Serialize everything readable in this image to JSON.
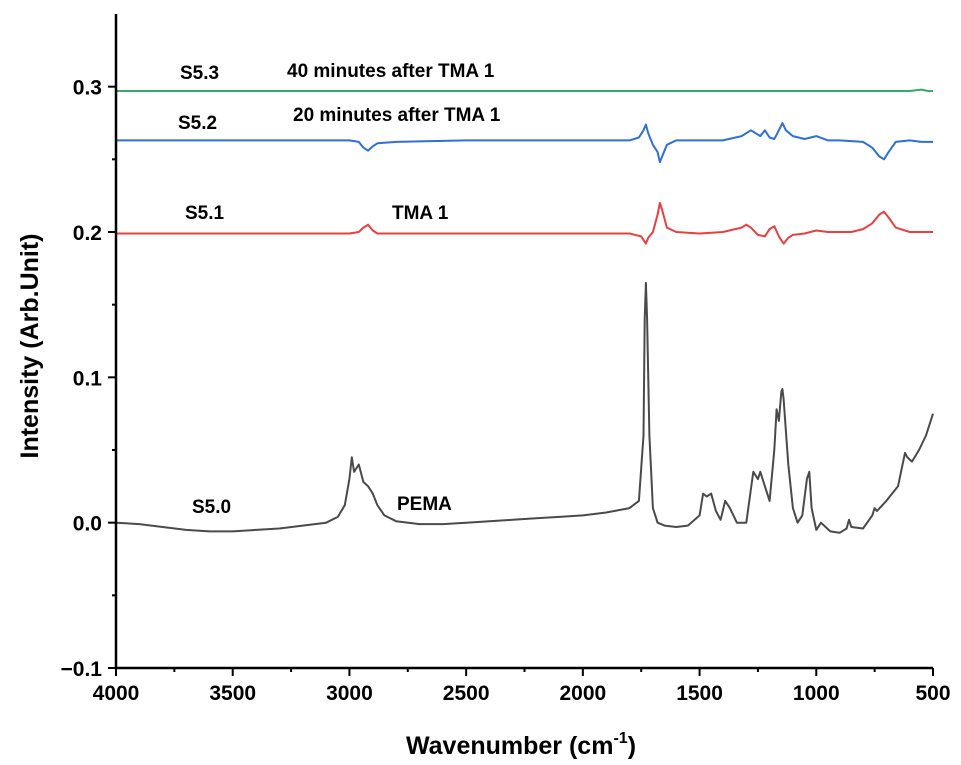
{
  "chart_data": {
    "type": "line",
    "xlabel": "Wavenumber (cm",
    "xlabel_sup": "-1",
    "xlabel_suffix": ")",
    "ylabel": "Intensity (Arb.Unit)",
    "xlim": [
      4000,
      500
    ],
    "ylim": [
      -0.1,
      0.35
    ],
    "x_reversed": true,
    "x_ticks": [
      4000,
      3500,
      3000,
      2500,
      2000,
      1500,
      1000,
      500
    ],
    "x_tick_labels": [
      "4000",
      "3500",
      "3000",
      "2500",
      "2000",
      "1500",
      "1000",
      "500"
    ],
    "y_ticks": [
      -0.1,
      0.0,
      0.1,
      0.2,
      0.3
    ],
    "y_tick_labels": [
      "−0.1",
      "0.0",
      "0.1",
      "0.2",
      "0.3"
    ],
    "grid": false,
    "series": [
      {
        "name": "S5.0",
        "label": "PEMA",
        "color": "#4a4a4a",
        "points": [
          [
            4000,
            0.0
          ],
          [
            3900,
            -0.001
          ],
          [
            3800,
            -0.003
          ],
          [
            3700,
            -0.005
          ],
          [
            3600,
            -0.006
          ],
          [
            3500,
            -0.006
          ],
          [
            3400,
            -0.005
          ],
          [
            3300,
            -0.004
          ],
          [
            3200,
            -0.002
          ],
          [
            3100,
            0.0
          ],
          [
            3050,
            0.004
          ],
          [
            3020,
            0.012
          ],
          [
            3000,
            0.03
          ],
          [
            2990,
            0.045
          ],
          [
            2980,
            0.035
          ],
          [
            2960,
            0.04
          ],
          [
            2940,
            0.028
          ],
          [
            2920,
            0.025
          ],
          [
            2900,
            0.02
          ],
          [
            2880,
            0.012
          ],
          [
            2850,
            0.005
          ],
          [
            2800,
            0.001
          ],
          [
            2700,
            -0.001
          ],
          [
            2600,
            -0.001
          ],
          [
            2500,
            0.0
          ],
          [
            2400,
            0.001
          ],
          [
            2300,
            0.002
          ],
          [
            2200,
            0.003
          ],
          [
            2100,
            0.004
          ],
          [
            2000,
            0.005
          ],
          [
            1900,
            0.007
          ],
          [
            1800,
            0.01
          ],
          [
            1760,
            0.015
          ],
          [
            1740,
            0.06
          ],
          [
            1735,
            0.14
          ],
          [
            1730,
            0.165
          ],
          [
            1725,
            0.14
          ],
          [
            1715,
            0.06
          ],
          [
            1700,
            0.01
          ],
          [
            1680,
            0.0
          ],
          [
            1650,
            -0.002
          ],
          [
            1600,
            -0.003
          ],
          [
            1550,
            -0.002
          ],
          [
            1500,
            0.005
          ],
          [
            1485,
            0.02
          ],
          [
            1470,
            0.018
          ],
          [
            1450,
            0.02
          ],
          [
            1430,
            0.008
          ],
          [
            1410,
            0.002
          ],
          [
            1390,
            0.015
          ],
          [
            1370,
            0.01
          ],
          [
            1340,
            0.0
          ],
          [
            1300,
            0.0
          ],
          [
            1270,
            0.035
          ],
          [
            1250,
            0.03
          ],
          [
            1240,
            0.035
          ],
          [
            1220,
            0.025
          ],
          [
            1200,
            0.015
          ],
          [
            1180,
            0.05
          ],
          [
            1170,
            0.078
          ],
          [
            1160,
            0.07
          ],
          [
            1150,
            0.09
          ],
          [
            1145,
            0.092
          ],
          [
            1140,
            0.085
          ],
          [
            1120,
            0.04
          ],
          [
            1100,
            0.01
          ],
          [
            1080,
            0.0
          ],
          [
            1060,
            0.005
          ],
          [
            1040,
            0.03
          ],
          [
            1030,
            0.035
          ],
          [
            1020,
            0.01
          ],
          [
            1000,
            -0.005
          ],
          [
            980,
            0.0
          ],
          [
            960,
            -0.003
          ],
          [
            940,
            -0.006
          ],
          [
            900,
            -0.007
          ],
          [
            870,
            -0.004
          ],
          [
            860,
            0.002
          ],
          [
            850,
            -0.003
          ],
          [
            800,
            -0.004
          ],
          [
            760,
            0.005
          ],
          [
            750,
            0.01
          ],
          [
            740,
            0.008
          ],
          [
            700,
            0.015
          ],
          [
            650,
            0.025
          ],
          [
            620,
            0.048
          ],
          [
            610,
            0.045
          ],
          [
            590,
            0.042
          ],
          [
            560,
            0.05
          ],
          [
            530,
            0.06
          ],
          [
            500,
            0.075
          ]
        ]
      },
      {
        "name": "S5.1",
        "label": "TMA 1",
        "color": "#e84040",
        "points": [
          [
            4000,
            0.199
          ],
          [
            3500,
            0.199
          ],
          [
            3000,
            0.199
          ],
          [
            2960,
            0.2
          ],
          [
            2940,
            0.203
          ],
          [
            2920,
            0.205
          ],
          [
            2900,
            0.201
          ],
          [
            2880,
            0.199
          ],
          [
            2500,
            0.199
          ],
          [
            2000,
            0.199
          ],
          [
            1800,
            0.199
          ],
          [
            1750,
            0.197
          ],
          [
            1730,
            0.192
          ],
          [
            1720,
            0.196
          ],
          [
            1700,
            0.2
          ],
          [
            1680,
            0.212
          ],
          [
            1670,
            0.22
          ],
          [
            1660,
            0.215
          ],
          [
            1640,
            0.203
          ],
          [
            1600,
            0.2
          ],
          [
            1500,
            0.199
          ],
          [
            1400,
            0.2
          ],
          [
            1320,
            0.203
          ],
          [
            1300,
            0.205
          ],
          [
            1280,
            0.203
          ],
          [
            1250,
            0.198
          ],
          [
            1220,
            0.197
          ],
          [
            1200,
            0.202
          ],
          [
            1180,
            0.204
          ],
          [
            1160,
            0.197
          ],
          [
            1140,
            0.192
          ],
          [
            1120,
            0.196
          ],
          [
            1100,
            0.198
          ],
          [
            1050,
            0.199
          ],
          [
            1000,
            0.201
          ],
          [
            950,
            0.2
          ],
          [
            900,
            0.2
          ],
          [
            850,
            0.2
          ],
          [
            800,
            0.202
          ],
          [
            760,
            0.206
          ],
          [
            730,
            0.212
          ],
          [
            710,
            0.214
          ],
          [
            690,
            0.21
          ],
          [
            660,
            0.203
          ],
          [
            600,
            0.2
          ],
          [
            550,
            0.2
          ],
          [
            500,
            0.2
          ]
        ]
      },
      {
        "name": "S5.2",
        "label": "20 minutes after TMA 1",
        "color": "#2f6fd8",
        "points": [
          [
            4000,
            0.263
          ],
          [
            3500,
            0.263
          ],
          [
            3000,
            0.263
          ],
          [
            2960,
            0.262
          ],
          [
            2940,
            0.258
          ],
          [
            2920,
            0.256
          ],
          [
            2900,
            0.259
          ],
          [
            2880,
            0.261
          ],
          [
            2800,
            0.262
          ],
          [
            2500,
            0.263
          ],
          [
            2000,
            0.263
          ],
          [
            1800,
            0.263
          ],
          [
            1760,
            0.265
          ],
          [
            1740,
            0.27
          ],
          [
            1730,
            0.274
          ],
          [
            1720,
            0.268
          ],
          [
            1700,
            0.26
          ],
          [
            1680,
            0.255
          ],
          [
            1670,
            0.248
          ],
          [
            1660,
            0.252
          ],
          [
            1640,
            0.26
          ],
          [
            1600,
            0.263
          ],
          [
            1500,
            0.263
          ],
          [
            1400,
            0.263
          ],
          [
            1320,
            0.266
          ],
          [
            1280,
            0.27
          ],
          [
            1260,
            0.268
          ],
          [
            1240,
            0.266
          ],
          [
            1220,
            0.27
          ],
          [
            1200,
            0.265
          ],
          [
            1180,
            0.264
          ],
          [
            1160,
            0.27
          ],
          [
            1145,
            0.275
          ],
          [
            1130,
            0.27
          ],
          [
            1100,
            0.266
          ],
          [
            1050,
            0.264
          ],
          [
            1000,
            0.266
          ],
          [
            950,
            0.263
          ],
          [
            900,
            0.263
          ],
          [
            800,
            0.262
          ],
          [
            760,
            0.258
          ],
          [
            730,
            0.252
          ],
          [
            710,
            0.25
          ],
          [
            690,
            0.255
          ],
          [
            660,
            0.262
          ],
          [
            600,
            0.263
          ],
          [
            550,
            0.262
          ],
          [
            500,
            0.262
          ]
        ]
      },
      {
        "name": "S5.3",
        "label": "40 minutes after TMA 1",
        "color": "#3aa86a",
        "points": [
          [
            4000,
            0.297
          ],
          [
            3500,
            0.297
          ],
          [
            3000,
            0.297
          ],
          [
            2500,
            0.297
          ],
          [
            2000,
            0.297
          ],
          [
            1500,
            0.297
          ],
          [
            1000,
            0.297
          ],
          [
            800,
            0.297
          ],
          [
            600,
            0.297
          ],
          [
            550,
            0.298
          ],
          [
            520,
            0.297
          ],
          [
            500,
            0.297
          ]
        ]
      }
    ]
  }
}
